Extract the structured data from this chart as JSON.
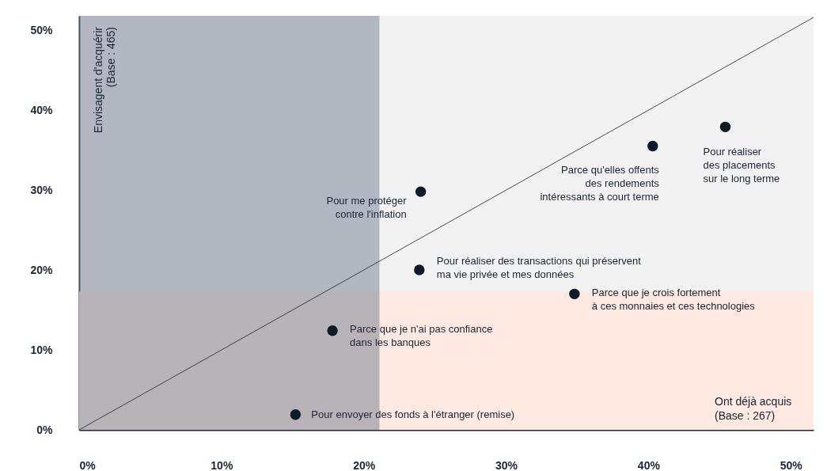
{
  "chart_data": {
    "type": "scatter",
    "xlabel": "Ont déjà acquis\n(Base : 267)",
    "ylabel": "Envisagent d'acquérir\n(Base : 465)",
    "x": [
      15.2,
      17.8,
      23.9,
      24.0,
      34.8,
      40.3,
      45.4
    ],
    "series": [
      {
        "color": "#0d1b2a",
        "values": [
          1.9,
          12.4,
          20.0,
          29.8,
          17.0,
          35.5,
          37.9
        ]
      },
      {
        "type": "line",
        "marker": "none",
        "color": "#1a2433",
        "x": [
          0,
          51.6
        ],
        "values": [
          0,
          51.6
        ]
      }
    ],
    "marker": "circle",
    "xlim": [
      0,
      51.6
    ],
    "ylim": [
      0,
      51.8
    ],
    "xticks": [
      {
        "value": 0,
        "label": "0%"
      },
      {
        "value": 10,
        "label": "10%"
      },
      {
        "value": 20,
        "label": "20%"
      },
      {
        "value": 30,
        "label": "30%"
      },
      {
        "value": 40,
        "label": "40%"
      },
      {
        "value": 50,
        "label": "50%"
      }
    ],
    "yticks": [
      {
        "value": 0,
        "label": "0%"
      },
      {
        "value": 10,
        "label": "10%"
      },
      {
        "value": 20,
        "label": "20%"
      },
      {
        "value": 30,
        "label": "30%"
      },
      {
        "value": 40,
        "label": "40%"
      },
      {
        "value": 50,
        "label": "50%"
      }
    ],
    "bands": [
      {
        "axis": "y",
        "from": 0,
        "to": 17.3,
        "color": "#fde9e1"
      },
      {
        "axis": "x",
        "from": 0,
        "to": 21.1,
        "color": "#7d8699"
      }
    ],
    "annotations": [
      {
        "text": "Pour envoyer des fonds à l'étranger (remise)",
        "x": 15.2,
        "y": 1.9
      },
      {
        "text": "Parce que je n'ai pas confiance\ndans les banques",
        "x": 17.8,
        "y": 12.4
      },
      {
        "text": "Pour réaliser des transactions qui préservent\nma vie privée et mes données",
        "x": 23.9,
        "y": 20.0
      },
      {
        "text": "Pour me protéger\ncontre l'inflation",
        "x": 24.0,
        "y": 29.8
      },
      {
        "text": "Parce que je crois fortement\nà ces monnaies et ces technologies",
        "x": 34.8,
        "y": 17.0
      },
      {
        "text": "Parce qu'elles offents\ndes rendements\nintéressants à court terme",
        "x": 40.3,
        "y": 35.5
      },
      {
        "text": "Pour réaliser\ndes placements\nsur le long terme",
        "x": 45.4,
        "y": 37.9
      }
    ],
    "grid": false
  }
}
